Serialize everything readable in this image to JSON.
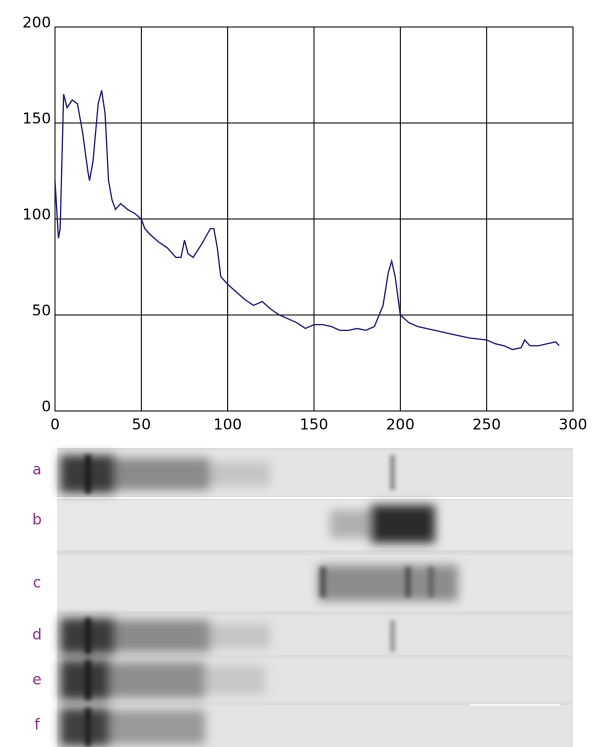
{
  "chart_data": {
    "type": "line",
    "x": [
      0,
      2,
      3,
      5,
      7,
      10,
      13,
      16,
      19,
      20,
      22,
      25,
      27,
      29,
      31,
      33,
      35,
      38,
      42,
      46,
      50,
      52,
      55,
      60,
      65,
      70,
      73,
      75,
      77,
      80,
      85,
      90,
      92,
      94,
      96,
      100,
      105,
      110,
      115,
      120,
      125,
      130,
      135,
      140,
      145,
      150,
      155,
      160,
      165,
      170,
      175,
      180,
      185,
      190,
      193,
      195,
      197,
      200,
      205,
      210,
      220,
      230,
      240,
      250,
      255,
      260,
      265,
      270,
      272,
      275,
      280,
      285,
      290,
      292
    ],
    "values": [
      120,
      90,
      95,
      165,
      158,
      162,
      160,
      145,
      125,
      120,
      130,
      160,
      167,
      155,
      120,
      110,
      105,
      108,
      105,
      103,
      100,
      95,
      92,
      88,
      85,
      80,
      80,
      89,
      82,
      80,
      87,
      95,
      95,
      85,
      70,
      66,
      62,
      58,
      55,
      57,
      53,
      50,
      48,
      46,
      43,
      45,
      45,
      44,
      42,
      42,
      43,
      42,
      44,
      55,
      72,
      78,
      70,
      50,
      46,
      44,
      42,
      40,
      38,
      37,
      35,
      34,
      32,
      33,
      37,
      34,
      34,
      35,
      36,
      34
    ],
    "color": "#1c1c70",
    "xlim": [
      0,
      300
    ],
    "xticks": [
      0,
      50,
      100,
      150,
      200,
      250,
      300
    ],
    "ylim": [
      0,
      200
    ],
    "yticks": [
      0,
      50,
      100,
      150,
      200
    ],
    "grid": true
  },
  "lane_labels": [
    "a",
    "b",
    "c",
    "d",
    "e",
    "f"
  ]
}
